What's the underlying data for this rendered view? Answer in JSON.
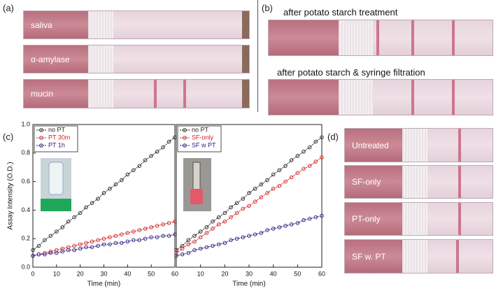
{
  "panel_labels": [
    "(a)",
    "(b)",
    "(c)",
    "(d)"
  ],
  "panel_a": {
    "strips": [
      "saliva",
      "α-amylase",
      "mucin"
    ]
  },
  "panel_b": {
    "captions": [
      "after potato starch treatment",
      "after potato starch & syringe filtration"
    ]
  },
  "panel_d": {
    "strips": [
      "Untreated",
      "SF-only",
      "PT-only",
      "SF w. PT"
    ]
  },
  "chart_data": [
    {
      "type": "line",
      "ylabel": "Assay Intensity (O.D.)",
      "xlabel": "Time (min)",
      "xlim": [
        0,
        60
      ],
      "ylim": [
        0,
        1.0
      ],
      "xticks": [
        0,
        10,
        20,
        30,
        40,
        50,
        60
      ],
      "yticks": [
        {
          "value": 0,
          "label": "0.0"
        },
        0.2,
        0.4,
        0.6,
        0.8,
        {
          "value": 1.0,
          "label": "1.0"
        }
      ],
      "legend": "upper left",
      "x": [
        0,
        2.5,
        5,
        7.5,
        10,
        12.5,
        15,
        17.5,
        20,
        22.5,
        25,
        27.5,
        30,
        32.5,
        35,
        37.5,
        40,
        42.5,
        45,
        47.5,
        50,
        52.5,
        55,
        57.5,
        60
      ],
      "series": [
        {
          "name": "no PT",
          "color": "#222222",
          "values": [
            0.12,
            0.15,
            0.19,
            0.22,
            0.25,
            0.28,
            0.32,
            0.35,
            0.38,
            0.42,
            0.45,
            0.48,
            0.52,
            0.55,
            0.58,
            0.61,
            0.65,
            0.68,
            0.71,
            0.75,
            0.78,
            0.81,
            0.84,
            0.88,
            0.91
          ]
        },
        {
          "name": "PT 30m",
          "color": "#d42020",
          "values": [
            0.08,
            0.09,
            0.1,
            0.11,
            0.12,
            0.13,
            0.14,
            0.15,
            0.16,
            0.17,
            0.18,
            0.19,
            0.2,
            0.21,
            0.22,
            0.23,
            0.24,
            0.25,
            0.26,
            0.27,
            0.28,
            0.29,
            0.3,
            0.31,
            0.32
          ]
        },
        {
          "name": "PT 1h",
          "color": "#2a1a80",
          "values": [
            0.08,
            0.09,
            0.09,
            0.1,
            0.1,
            0.11,
            0.12,
            0.12,
            0.13,
            0.14,
            0.14,
            0.15,
            0.16,
            0.16,
            0.17,
            0.17,
            0.18,
            0.19,
            0.19,
            0.2,
            0.21,
            0.21,
            0.22,
            0.22,
            0.23
          ]
        }
      ]
    },
    {
      "type": "line",
      "xlabel": "Time (min)",
      "xlim": [
        0,
        60
      ],
      "ylim": [
        0,
        1.0
      ],
      "xticks": [
        10,
        20,
        30,
        40,
        50,
        60
      ],
      "legend": "upper left",
      "x": [
        0,
        2.5,
        5,
        7.5,
        10,
        12.5,
        15,
        17.5,
        20,
        22.5,
        25,
        27.5,
        30,
        32.5,
        35,
        37.5,
        40,
        42.5,
        45,
        47.5,
        50,
        52.5,
        55,
        57.5,
        60
      ],
      "series": [
        {
          "name": "no PT",
          "color": "#222222",
          "values": [
            0.12,
            0.15,
            0.19,
            0.22,
            0.25,
            0.28,
            0.32,
            0.35,
            0.38,
            0.42,
            0.45,
            0.48,
            0.52,
            0.55,
            0.58,
            0.61,
            0.65,
            0.68,
            0.71,
            0.75,
            0.78,
            0.81,
            0.84,
            0.88,
            0.91
          ]
        },
        {
          "name": "SF-only",
          "color": "#d42020",
          "values": [
            0.1,
            0.13,
            0.16,
            0.18,
            0.21,
            0.24,
            0.27,
            0.3,
            0.32,
            0.35,
            0.38,
            0.41,
            0.43,
            0.46,
            0.49,
            0.52,
            0.55,
            0.57,
            0.6,
            0.63,
            0.66,
            0.69,
            0.71,
            0.74,
            0.77
          ]
        },
        {
          "name": "SF w PT",
          "color": "#2a1a80",
          "values": [
            0.08,
            0.09,
            0.1,
            0.12,
            0.13,
            0.14,
            0.15,
            0.16,
            0.17,
            0.19,
            0.2,
            0.21,
            0.22,
            0.23,
            0.24,
            0.26,
            0.27,
            0.28,
            0.29,
            0.3,
            0.31,
            0.33,
            0.34,
            0.35,
            0.36
          ]
        }
      ]
    }
  ]
}
